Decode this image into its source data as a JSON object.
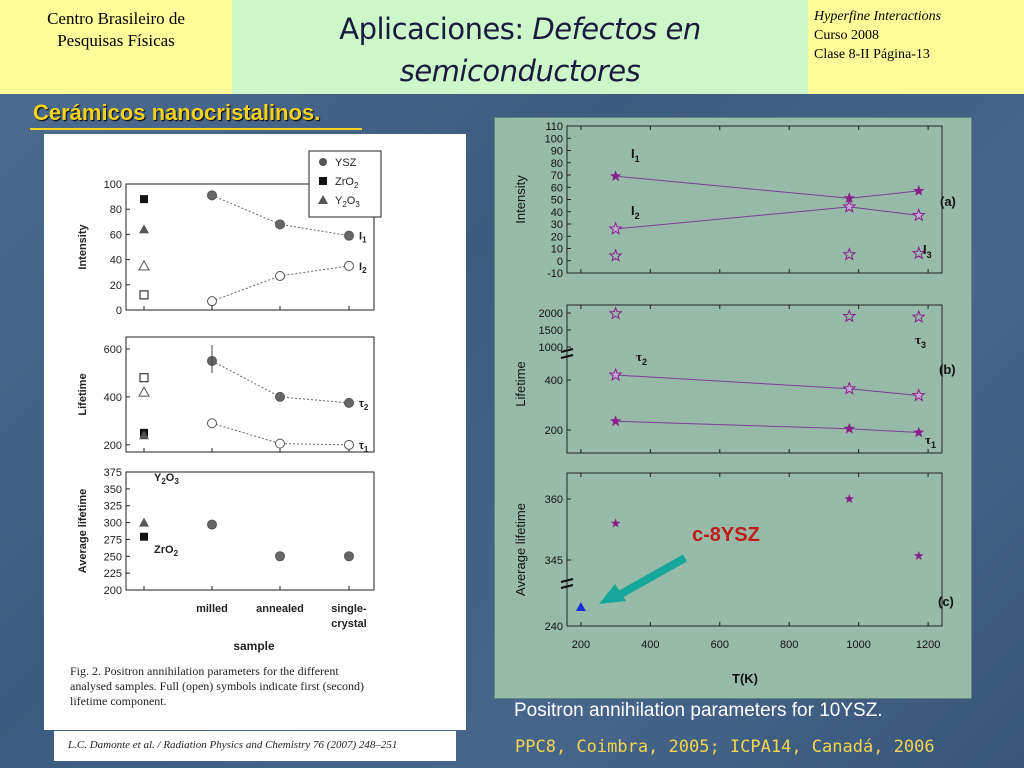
{
  "header": {
    "left_line1": "Centro Brasileiro de",
    "left_line2": "Pesquisas Físicas",
    "title_plain": "Aplicaciones: ",
    "title_italic": "Defectos en semiconductores",
    "right_line1": "Hyperfine Interactions",
    "right_line2": "Curso 2008",
    "right_line3": "Clase 8-II  Página-13"
  },
  "subtitle": "Cerámicos nanocristalinos.",
  "left_figure": {
    "fig_caption_line1": "Fig. 2. Positron annihilation parameters for the different",
    "fig_caption_line2": "analysed samples. Full (open) symbols indicate first (second)",
    "fig_caption_line3": "lifetime component.",
    "citation": "L.C. Damonte et al. / Radiation Physics and Chemistry 76 (2007) 248–251"
  },
  "right_figure": {
    "caption": "Positron annihilation parameters for 10YSZ.",
    "source": "PPC8, Coimbra, 2005; ICPA14, Canadá, 2006",
    "annotation": "c-8YSZ"
  },
  "colors": {
    "title_yellow": "#f5d21c",
    "panel_green": "#97bba8",
    "star_purple": "#8a1f8a",
    "arrow_teal": "#14a79a"
  },
  "chart_data": [
    {
      "type": "line",
      "panel": "left-top",
      "xlabel": "sample",
      "categories": [
        "milled",
        "annealed",
        "single-crystal"
      ],
      "ylabel": "Intensity",
      "ylim": [
        0,
        100
      ],
      "yticks": [
        "0",
        "20",
        "40",
        "60",
        "80",
        "100"
      ],
      "legend": [
        "YSZ",
        "ZrO2",
        "Y2O3"
      ],
      "series": [
        {
          "name": "I1",
          "values": [
            91,
            68,
            59
          ]
        },
        {
          "name": "I2",
          "values": [
            7,
            27,
            35
          ]
        }
      ],
      "reference_points": {
        "ZrO2": [
          88,
          12
        ],
        "Y2O3": [
          64,
          35
        ]
      }
    },
    {
      "type": "line",
      "panel": "left-middle",
      "ylabel": "Lifetime",
      "ylim": [
        200,
        650
      ],
      "yticks": [
        "200",
        "400",
        "600"
      ],
      "series": [
        {
          "name": "τ2",
          "values": [
            550,
            400,
            375
          ]
        },
        {
          "name": "τ1",
          "values": [
            290,
            205,
            200
          ]
        }
      ],
      "reference_points": {
        "ZrO2": [
          250,
          480
        ],
        "Y2O3": [
          240,
          420
        ]
      }
    },
    {
      "type": "scatter",
      "panel": "left-bottom",
      "ylabel": "Average lifetime",
      "ylim": [
        200,
        375
      ],
      "yticks": [
        "200",
        "225",
        "250",
        "275",
        "300",
        "325",
        "350",
        "375"
      ],
      "series": [
        {
          "name": "",
          "values": [
            297,
            250,
            250
          ]
        }
      ],
      "reference_labels": [
        "Y2O3",
        "ZrO2"
      ],
      "reference_points": {
        "Y2O3": 300,
        "ZrO2": 279
      }
    },
    {
      "type": "line",
      "panel": "(a)",
      "xlabel": "T(K)",
      "ylabel": "Intensity",
      "ylim": [
        -10,
        110
      ],
      "yticks": [
        "-10",
        "0",
        "10",
        "20",
        "30",
        "40",
        "50",
        "60",
        "70",
        "80",
        "90",
        "100",
        "110"
      ],
      "x": [
        300,
        973,
        1173
      ],
      "series": [
        {
          "name": "I1",
          "values": [
            69,
            51,
            57
          ]
        },
        {
          "name": "I2",
          "values": [
            26,
            44,
            37
          ]
        },
        {
          "name": "I3",
          "values": [
            4,
            5,
            6
          ]
        }
      ]
    },
    {
      "type": "line",
      "panel": "(b)",
      "ylabel": "Lifetime",
      "yticks_upper": [
        "1000",
        "1500",
        "2000"
      ],
      "yticks_lower": [
        "200",
        "400"
      ],
      "x": [
        300,
        973,
        1173
      ],
      "series": [
        {
          "name": "τ3",
          "values": [
            1980,
            1900,
            1880
          ]
        },
        {
          "name": "τ2",
          "values": [
            420,
            365,
            338
          ]
        },
        {
          "name": "τ1",
          "values": [
            235,
            205,
            190
          ]
        }
      ]
    },
    {
      "type": "scatter",
      "panel": "(c)",
      "ylabel": "Average lifetime",
      "yticks": [
        "240",
        "345",
        "360"
      ],
      "xticks": [
        "200",
        "400",
        "600",
        "800",
        "1000",
        "1200"
      ],
      "xlim": [
        200,
        1200
      ],
      "x": [
        300,
        973,
        1173
      ],
      "series": [
        {
          "name": "",
          "values": [
            354,
            360,
            346
          ]
        },
        {
          "name": "c-8YSZ",
          "x": [
            200
          ],
          "values": [
            242
          ]
        }
      ]
    }
  ]
}
